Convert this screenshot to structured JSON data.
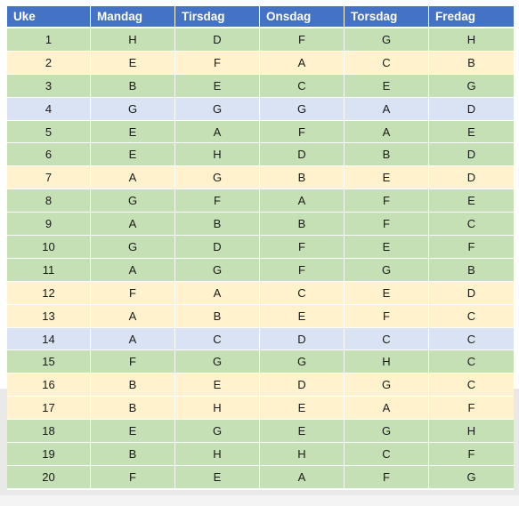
{
  "schedule": {
    "headers": [
      "Uke",
      "Mandag",
      "Tirsdag",
      "Onsdag",
      "Torsdag",
      "Fredag"
    ],
    "row_colors": {
      "green": "#c5e0b4",
      "yellow": "#fff2cc",
      "blue": "#dae3f3",
      "header": "#4472c4"
    },
    "rows": [
      {
        "week": "1",
        "color": "green",
        "days": [
          "H",
          "D",
          "F",
          "G",
          "H"
        ]
      },
      {
        "week": "2",
        "color": "yellow",
        "days": [
          "E",
          "F",
          "A",
          "C",
          "B"
        ]
      },
      {
        "week": "3",
        "color": "green",
        "days": [
          "B",
          "E",
          "C",
          "E",
          "G"
        ]
      },
      {
        "week": "4",
        "color": "blue",
        "days": [
          "G",
          "G",
          "G",
          "A",
          "D"
        ]
      },
      {
        "week": "5",
        "color": "green",
        "days": [
          "E",
          "A",
          "F",
          "A",
          "E"
        ]
      },
      {
        "week": "6",
        "color": "green",
        "days": [
          "E",
          "H",
          "D",
          "B",
          "D"
        ]
      },
      {
        "week": "7",
        "color": "yellow",
        "days": [
          "A",
          "G",
          "B",
          "E",
          "D"
        ]
      },
      {
        "week": "8",
        "color": "green",
        "days": [
          "G",
          "F",
          "A",
          "F",
          "E"
        ]
      },
      {
        "week": "9",
        "color": "green",
        "days": [
          "A",
          "B",
          "B",
          "F",
          "C"
        ]
      },
      {
        "week": "10",
        "color": "green",
        "days": [
          "G",
          "D",
          "F",
          "E",
          "F"
        ]
      },
      {
        "week": "11",
        "color": "green",
        "days": [
          "A",
          "G",
          "F",
          "G",
          "B"
        ]
      },
      {
        "week": "12",
        "color": "yellow",
        "days": [
          "F",
          "A",
          "C",
          "E",
          "D"
        ]
      },
      {
        "week": "13",
        "color": "yellow",
        "days": [
          "A",
          "B",
          "E",
          "F",
          "C"
        ]
      },
      {
        "week": "14",
        "color": "blue",
        "days": [
          "A",
          "C",
          "D",
          "C",
          "C"
        ]
      },
      {
        "week": "15",
        "color": "green",
        "days": [
          "F",
          "G",
          "G",
          "H",
          "C"
        ]
      },
      {
        "week": "16",
        "color": "yellow",
        "days": [
          "B",
          "E",
          "D",
          "G",
          "C"
        ]
      },
      {
        "week": "17",
        "color": "yellow",
        "days": [
          "B",
          "H",
          "E",
          "A",
          "F"
        ]
      },
      {
        "week": "18",
        "color": "green",
        "days": [
          "E",
          "G",
          "E",
          "G",
          "H"
        ]
      },
      {
        "week": "19",
        "color": "green",
        "days": [
          "B",
          "H",
          "H",
          "C",
          "F"
        ]
      },
      {
        "week": "20",
        "color": "green",
        "days": [
          "F",
          "E",
          "A",
          "F",
          "G"
        ]
      }
    ]
  }
}
